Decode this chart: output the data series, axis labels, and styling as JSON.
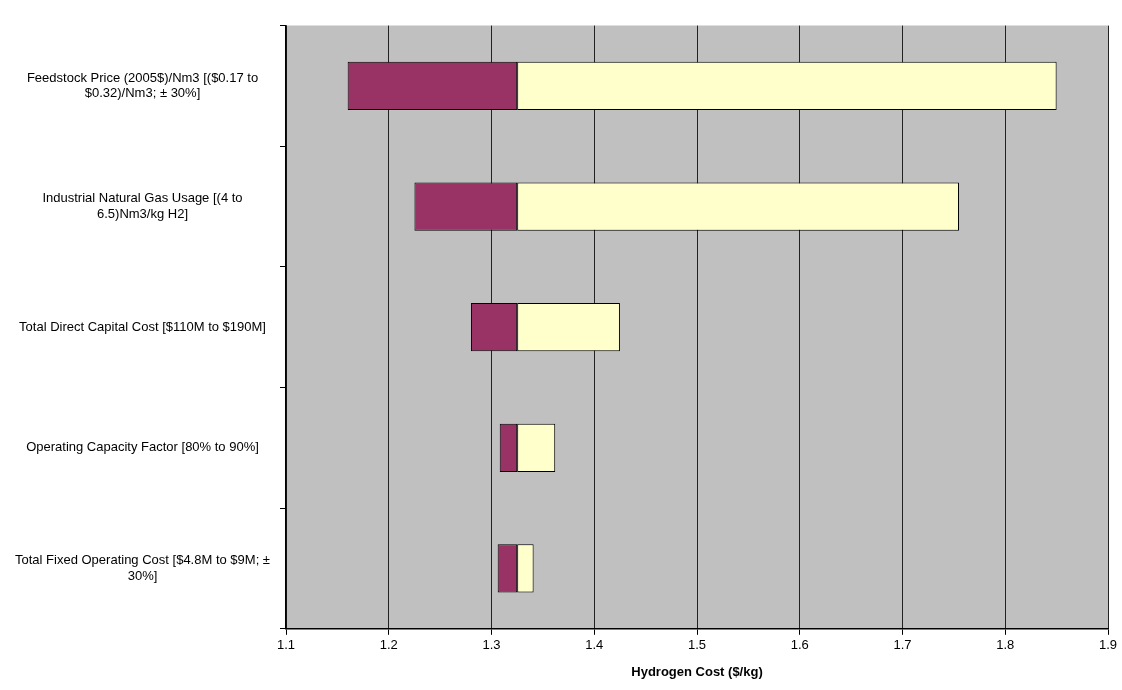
{
  "chart_data": {
    "type": "bar",
    "orientation": "horizontal",
    "xlabel": "Hydrogen Cost ($/kg)",
    "categories": [
      "Feedstock Price (2005$)/Nm3 [($0.17 to $0.32)/Nm3; ± 30%]",
      "Industrial Natural Gas Usage [(4 to 6.5)Nm3/kg H2]",
      "Total Direct Capital Cost [$110M to $190M]",
      "Operating Capacity Factor [80% to 90%]",
      "Total Fixed Operating Cost [$4.8M to $9M; ± 30%]"
    ],
    "series": [
      {
        "color": "#993366",
        "base": [
          1.16,
          1.225,
          1.28,
          1.308,
          1.306
        ],
        "values": [
          0.165,
          0.1,
          0.045,
          0.017,
          0.019
        ]
      },
      {
        "color": "#ffffcc",
        "base": [
          1.325,
          1.325,
          1.325,
          1.325,
          1.325
        ],
        "values": [
          0.525,
          0.43,
          0.1,
          0.037,
          0.016
        ]
      }
    ],
    "xlim": [
      1.1,
      1.9
    ],
    "xticks": [
      1.1,
      1.2,
      1.3,
      1.4,
      1.5,
      1.6,
      1.7,
      1.8,
      1.9
    ],
    "grid": "x",
    "legend": false
  }
}
